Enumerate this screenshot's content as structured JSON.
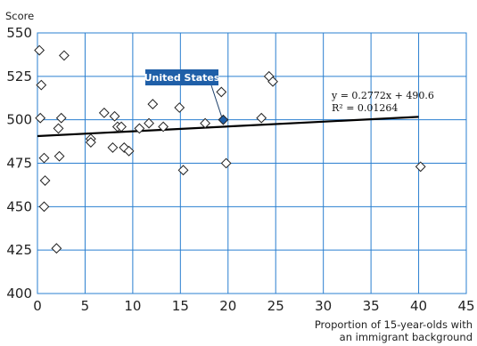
{
  "chart_data": {
    "type": "scatter",
    "ylabel": "Score",
    "xlabel_lines": [
      "Proportion of 15-year-olds with",
      "an immigrant background"
    ],
    "xlim": [
      0,
      45
    ],
    "ylim": [
      400,
      550
    ],
    "xticks": [
      0,
      5,
      10,
      15,
      20,
      25,
      30,
      35,
      40,
      45
    ],
    "yticks": [
      400,
      425,
      450,
      475,
      500,
      525,
      550
    ],
    "grid": true,
    "points": [
      {
        "x": 0.2,
        "y": 540
      },
      {
        "x": 0.4,
        "y": 520
      },
      {
        "x": 0.3,
        "y": 501
      },
      {
        "x": 0.7,
        "y": 478
      },
      {
        "x": 0.8,
        "y": 465
      },
      {
        "x": 0.7,
        "y": 450
      },
      {
        "x": 2.0,
        "y": 426
      },
      {
        "x": 2.8,
        "y": 537
      },
      {
        "x": 2.5,
        "y": 501
      },
      {
        "x": 2.2,
        "y": 495
      },
      {
        "x": 2.3,
        "y": 479
      },
      {
        "x": 5.6,
        "y": 489
      },
      {
        "x": 5.6,
        "y": 487
      },
      {
        "x": 7.0,
        "y": 504
      },
      {
        "x": 8.1,
        "y": 502
      },
      {
        "x": 8.4,
        "y": 496
      },
      {
        "x": 8.8,
        "y": 496
      },
      {
        "x": 7.9,
        "y": 484
      },
      {
        "x": 9.1,
        "y": 484
      },
      {
        "x": 9.6,
        "y": 482
      },
      {
        "x": 10.7,
        "y": 495
      },
      {
        "x": 11.7,
        "y": 498
      },
      {
        "x": 12.1,
        "y": 509
      },
      {
        "x": 13.2,
        "y": 496
      },
      {
        "x": 14.9,
        "y": 507
      },
      {
        "x": 15.3,
        "y": 471
      },
      {
        "x": 17.6,
        "y": 498
      },
      {
        "x": 19.3,
        "y": 516
      },
      {
        "x": 19.8,
        "y": 475
      },
      {
        "x": 23.5,
        "y": 501
      },
      {
        "x": 24.3,
        "y": 525
      },
      {
        "x": 24.7,
        "y": 522
      },
      {
        "x": 40.2,
        "y": 473
      }
    ],
    "highlight": {
      "label": "United States",
      "x": 19.5,
      "y": 500,
      "color": "#1f5fa8"
    },
    "trendline": {
      "slope": 0.2772,
      "intercept": 490.6,
      "x_range": [
        0,
        40
      ],
      "equation": "y = 0.2772x + 490.6",
      "r2": "R² = 0.01264"
    }
  },
  "colors": {
    "grid": "#2a7fd0",
    "marker_fill": "#ffffff",
    "marker_stroke": "#222222",
    "trend": "#000000",
    "highlight_box": "#1f5fa8"
  }
}
